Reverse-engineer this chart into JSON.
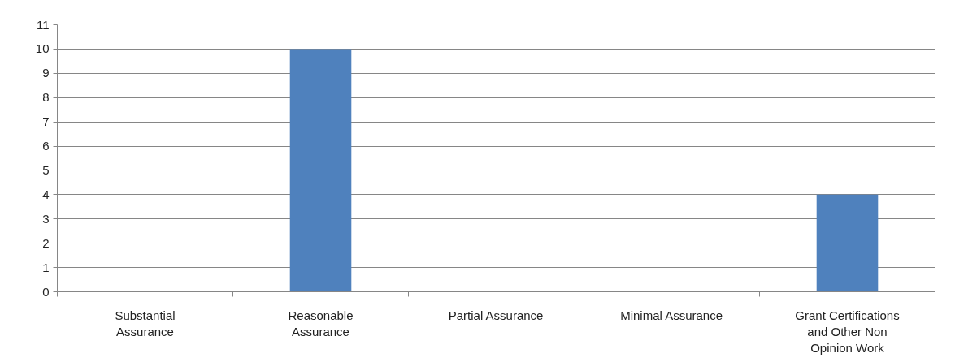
{
  "chart_data": {
    "type": "bar",
    "categories": [
      "Substantial\nAssurance",
      "Reasonable\nAssurance",
      "Partial Assurance",
      "Minimal Assurance",
      "Grant Certifications\nand Other Non\nOpinion Work"
    ],
    "values": [
      0,
      10,
      0,
      0,
      4
    ],
    "color": "#4f81bd",
    "ylim": [
      0,
      11
    ],
    "yticks": [
      0,
      1,
      2,
      3,
      4,
      5,
      6,
      7,
      8,
      9,
      10,
      11
    ],
    "grid": "y"
  }
}
